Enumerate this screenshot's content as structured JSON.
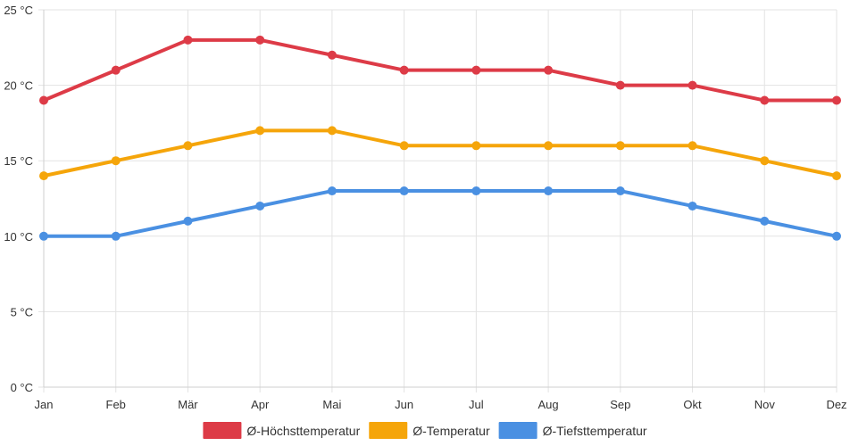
{
  "chart_data": {
    "type": "line",
    "categories": [
      "Jan",
      "Feb",
      "Mär",
      "Apr",
      "Mai",
      "Jun",
      "Jul",
      "Aug",
      "Sep",
      "Okt",
      "Nov",
      "Dez"
    ],
    "y_ticks": [
      "0 °C",
      "5 °C",
      "10 °C",
      "15 °C",
      "20 °C",
      "25 °C"
    ],
    "y_tick_values": [
      0,
      5,
      10,
      15,
      20,
      25
    ],
    "ylim": [
      0,
      25
    ],
    "grid": true,
    "legend_position": "bottom",
    "series": [
      {
        "name": "Ø-Höchsttemperatur",
        "color": "#dd3b47",
        "values": [
          19,
          21,
          23,
          23,
          22,
          21,
          21,
          21,
          20,
          20,
          19,
          19
        ]
      },
      {
        "name": "Ø-Temperatur",
        "color": "#f5a50a",
        "values": [
          14,
          15,
          16,
          17,
          17,
          16,
          16,
          16,
          16,
          16,
          15,
          14
        ]
      },
      {
        "name": "Ø-Tiefsttemperatur",
        "color": "#4a90e2",
        "values": [
          10,
          10,
          11,
          12,
          13,
          13,
          13,
          13,
          13,
          12,
          11,
          10
        ]
      }
    ]
  }
}
